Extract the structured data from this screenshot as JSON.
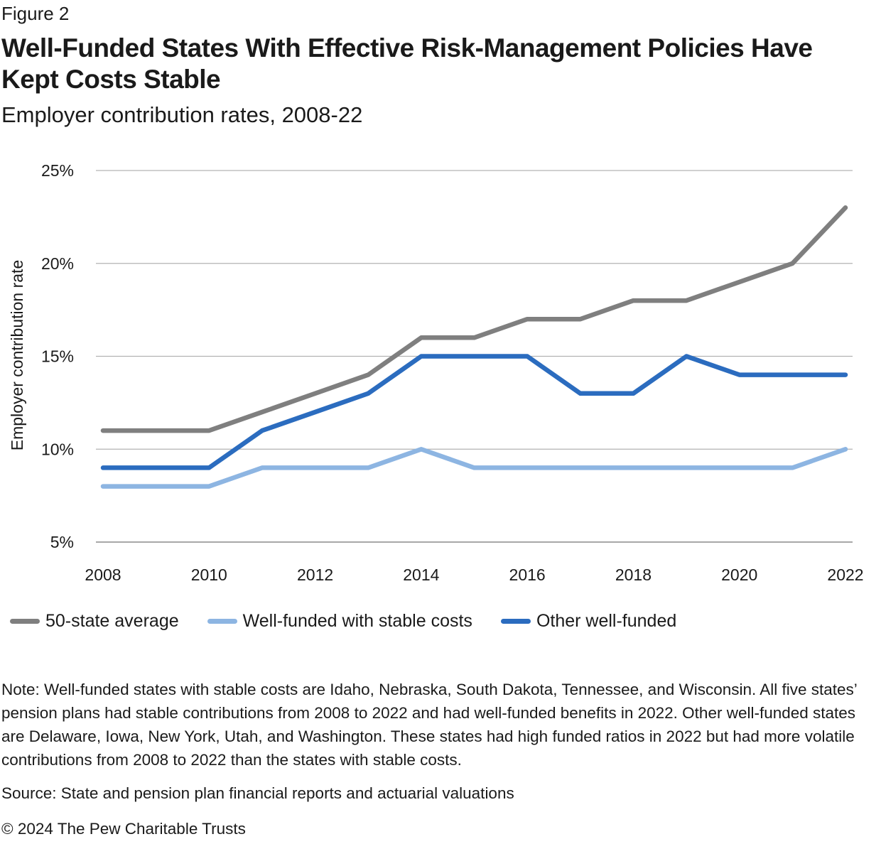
{
  "figure_label": "Figure 2",
  "title": "Well-Funded States With Effective Risk-Management Policies Have Kept Costs Stable",
  "subtitle": "Employer contribution rates, 2008-22",
  "chart_data": {
    "type": "line",
    "x": [
      2008,
      2009,
      2010,
      2011,
      2012,
      2013,
      2014,
      2015,
      2016,
      2017,
      2018,
      2019,
      2020,
      2021,
      2022
    ],
    "x_tick_labels": [
      "2008",
      "2010",
      "2012",
      "2014",
      "2016",
      "2018",
      "2020",
      "2022"
    ],
    "x_ticks": [
      2008,
      2010,
      2012,
      2014,
      2016,
      2018,
      2020,
      2022
    ],
    "ylabel": "Employer contribution rate",
    "ylim": [
      5,
      25
    ],
    "y_ticks": [
      5,
      10,
      15,
      20,
      25
    ],
    "y_tick_labels": [
      "5%",
      "10%",
      "15%",
      "20%",
      "25%"
    ],
    "grid": true,
    "legend": "bottom",
    "series": [
      {
        "name": "50-state average",
        "color": "#7f7f7f",
        "values": [
          11,
          11,
          11,
          12,
          13,
          14,
          16,
          16,
          17,
          17,
          18,
          18,
          19,
          20,
          23
        ]
      },
      {
        "name": "Well-funded with stable costs",
        "color": "#8db5e2",
        "values": [
          8,
          8,
          8,
          9,
          9,
          9,
          10,
          9,
          9,
          9,
          9,
          9,
          9,
          9,
          10
        ]
      },
      {
        "name": "Other well-funded",
        "color": "#2b6cbf",
        "values": [
          9,
          9,
          9,
          11,
          12,
          13,
          15,
          15,
          15,
          13,
          13,
          15,
          14,
          14,
          14
        ]
      }
    ]
  },
  "legend_items": [
    {
      "label": "50-state average",
      "color": "#7f7f7f"
    },
    {
      "label": "Well-funded with stable costs",
      "color": "#8db5e2"
    },
    {
      "label": "Other well-funded",
      "color": "#2b6cbf"
    }
  ],
  "note": "Note: Well-funded states with stable costs are Idaho, Nebraska, South Dakota, Tennessee, and Wisconsin. All five states’ pension plans had stable contributions from 2008 to 2022 and had well-funded benefits in 2022. Other well-funded states are Delaware, Iowa, New York, Utah, and Washington. These states had high funded ratios in 2022 but had more volatile contributions from 2008 to 2022 than the states with stable costs.",
  "source": "Source: State and pension plan financial reports and actuarial valuations",
  "copyright": "© 2024 The Pew Charitable Trusts"
}
